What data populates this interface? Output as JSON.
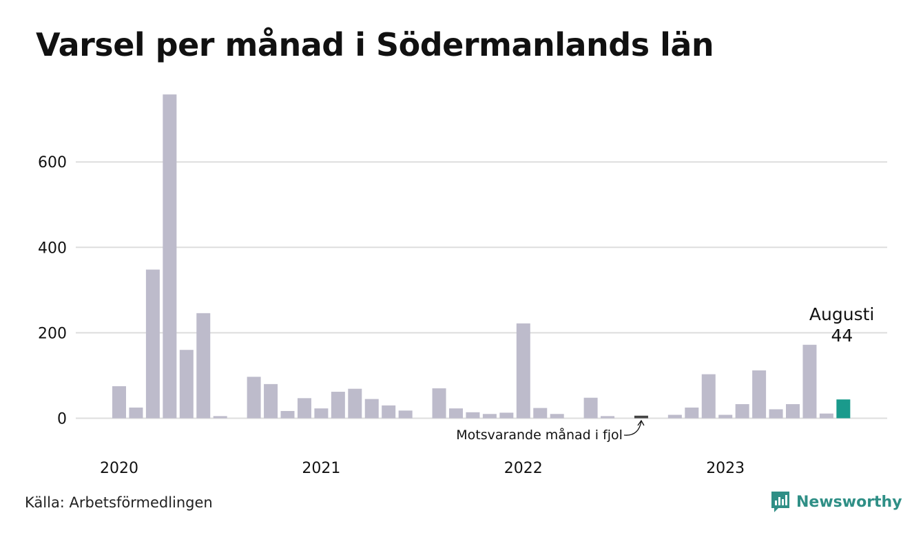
{
  "title": "Varsel per månad i Södermanlands län",
  "source": "Källa: Arbetsförmedlingen",
  "brand": "Newsworthy",
  "colors": {
    "bar": "#bdbbcb",
    "bar_previous_year": "#444444",
    "bar_current": "#1a9a8c",
    "grid": "#dddddd",
    "brand": "#2f8f86"
  },
  "chart_data": {
    "type": "bar",
    "title": "Varsel per månad i Södermanlands län",
    "xlabel": "",
    "ylabel": "",
    "ylim": [
      0,
      760
    ],
    "y_ticks": [
      0,
      200,
      400,
      600
    ],
    "grid": true,
    "year_labels": [
      "2020",
      "2021",
      "2022",
      "2023"
    ],
    "months": [
      "2020-01",
      "2020-02",
      "2020-03",
      "2020-04",
      "2020-05",
      "2020-06",
      "2020-07",
      "2020-08",
      "2020-09",
      "2020-10",
      "2020-11",
      "2020-12",
      "2021-01",
      "2021-02",
      "2021-03",
      "2021-04",
      "2021-05",
      "2021-06",
      "2021-07",
      "2021-08",
      "2021-09",
      "2021-10",
      "2021-11",
      "2021-12",
      "2022-01",
      "2022-02",
      "2022-03",
      "2022-04",
      "2022-05",
      "2022-06",
      "2022-07",
      "2022-08",
      "2022-09",
      "2022-10",
      "2022-11",
      "2022-12",
      "2023-01",
      "2023-02",
      "2023-03",
      "2023-04",
      "2023-05",
      "2023-06",
      "2023-07",
      "2023-08"
    ],
    "values": [
      75,
      25,
      348,
      758,
      160,
      246,
      5,
      0,
      97,
      80,
      17,
      47,
      23,
      62,
      69,
      45,
      30,
      18,
      0,
      70,
      23,
      14,
      10,
      13,
      222,
      24,
      10,
      0,
      48,
      5,
      0,
      6,
      0,
      8,
      25,
      103,
      8,
      33,
      112,
      21,
      33,
      172,
      11,
      44
    ],
    "highlight_previous_year": "2022-08",
    "highlight_current": "2023-08",
    "annotations": {
      "current_month": "Augusti",
      "current_value": "44",
      "previous_year": "Motsvarande månad i fjol"
    }
  }
}
